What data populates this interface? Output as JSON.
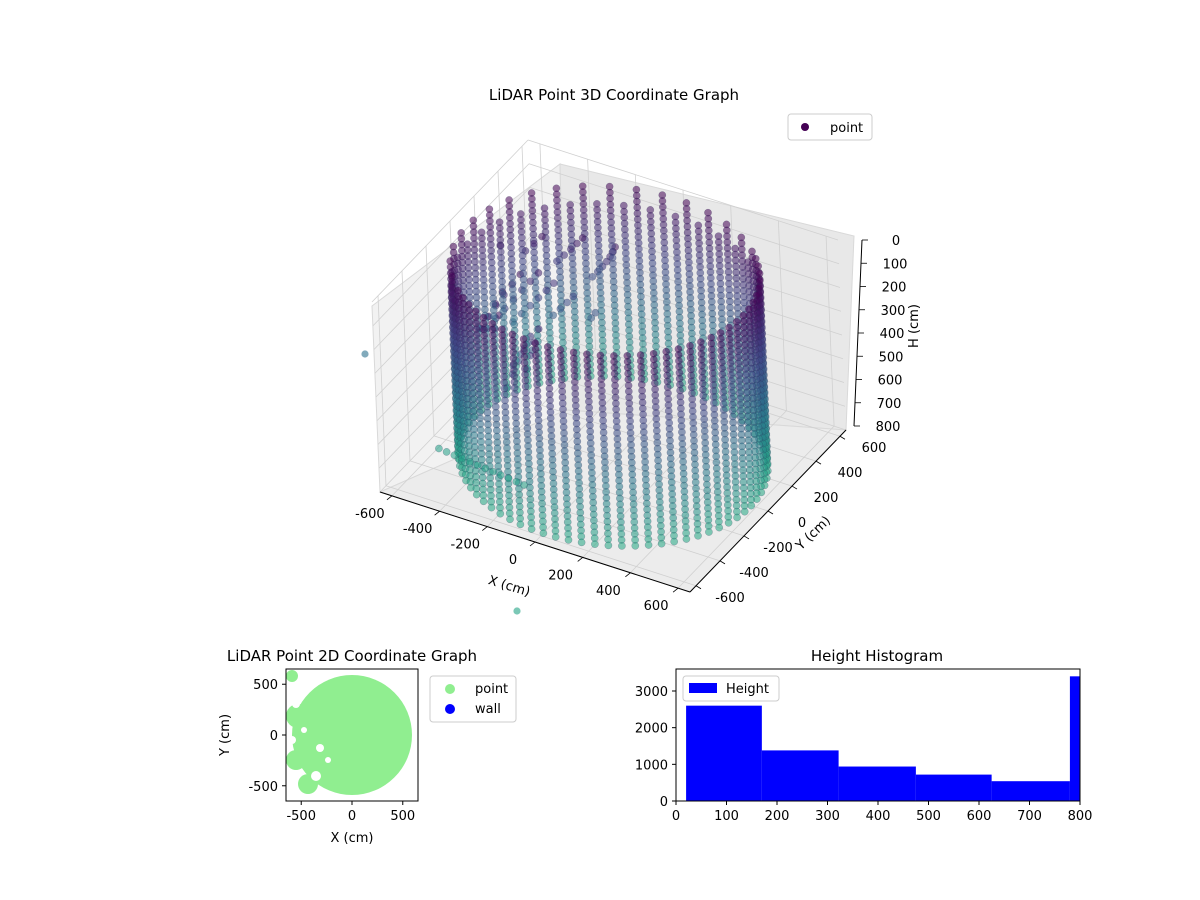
{
  "chart_data": [
    {
      "type": "scatter",
      "projection": "3d",
      "title": "LiDAR Point 3D Coordinate Graph",
      "xlabel": "X (cm)",
      "ylabel": "Y (cm)",
      "zlabel": "H (cm)",
      "xlim": [
        -650,
        650
      ],
      "ylim": [
        -650,
        650
      ],
      "zlim": [
        800,
        0
      ],
      "xticks": [
        -600,
        -400,
        -200,
        0,
        200,
        400,
        600
      ],
      "yticks": [
        -600,
        -400,
        -200,
        0,
        200,
        400,
        600
      ],
      "zticks": [
        0,
        100,
        200,
        300,
        400,
        500,
        600,
        700,
        800
      ],
      "grid": true,
      "legend": {
        "placement": "top-right",
        "entries": [
          {
            "label": "point",
            "color": "#440154"
          }
        ]
      },
      "colormap": "viridis",
      "series": [
        {
          "name": "point",
          "description_points": "cylindrical wall of radius ~580 cm, H 0-800 cm, sampled every ~5 degrees"
        }
      ]
    },
    {
      "type": "scatter",
      "title": "LiDAR Point 2D Coordinate Graph",
      "xlabel": "X (cm)",
      "ylabel": "Y (cm)",
      "xlim": [
        -650,
        650
      ],
      "ylim": [
        -650,
        650
      ],
      "xticks": [
        -500,
        0,
        500
      ],
      "yticks": [
        -500,
        0,
        500
      ],
      "legend": {
        "placement": "outside-right",
        "entries": [
          {
            "label": "point",
            "color": "#90ee90"
          },
          {
            "label": "wall",
            "color": "#0000ff"
          }
        ]
      }
    },
    {
      "type": "bar",
      "title": "Height Histogram",
      "legend": {
        "placement": "top-left",
        "entries": [
          {
            "label": "Height",
            "color": "#0000ff"
          }
        ]
      },
      "xlim": [
        0,
        800
      ],
      "ylim": [
        0,
        3600
      ],
      "xticks": [
        0,
        100,
        200,
        300,
        400,
        500,
        600,
        700,
        800
      ],
      "yticks": [
        0,
        1000,
        2000,
        3000
      ],
      "bins": [
        {
          "from": 20,
          "to": 170,
          "count": 2600
        },
        {
          "from": 170,
          "to": 322,
          "count": 1380
        },
        {
          "from": 322,
          "to": 475,
          "count": 940
        },
        {
          "from": 475,
          "to": 625,
          "count": 720
        },
        {
          "from": 625,
          "to": 780,
          "count": 540
        },
        {
          "from": 780,
          "to": 800,
          "count": 3400
        }
      ]
    }
  ]
}
